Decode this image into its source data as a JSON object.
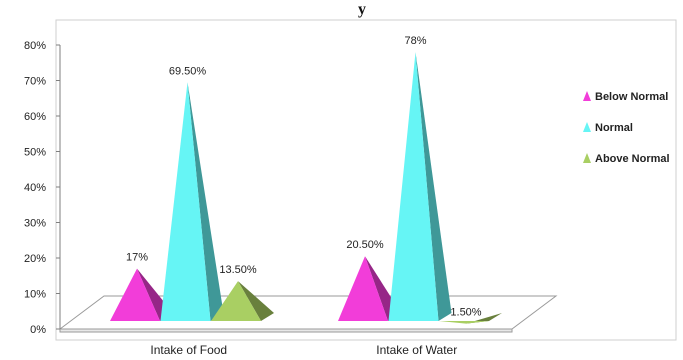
{
  "chart_data": {
    "type": "bar",
    "title": "",
    "xlabel": "",
    "ylabel": "",
    "categories": [
      "Intake of Food",
      "Intake of Water"
    ],
    "series": [
      {
        "name": "Below Normal",
        "values": [
          17,
          20.5
        ],
        "labels": [
          "17%",
          "20.50%"
        ],
        "color": "#f23dd9"
      },
      {
        "name": "Normal",
        "values": [
          69.5,
          78
        ],
        "labels": [
          "69.50%",
          "78%"
        ],
        "color": "#66f5f5"
      },
      {
        "name": "Above Normal",
        "values": [
          13.5,
          1.5
        ],
        "labels": [
          "13.50%",
          "1.50%"
        ],
        "color": "#a9cf63"
      }
    ],
    "ylim": [
      0,
      80
    ],
    "yticks": [
      "0%",
      "10%",
      "20%",
      "30%",
      "40%",
      "50%",
      "60%",
      "70%",
      "80%"
    ],
    "legend_position": "right",
    "grid": false,
    "mark_shape": "pyramid-3d"
  },
  "title_fragment": "y"
}
